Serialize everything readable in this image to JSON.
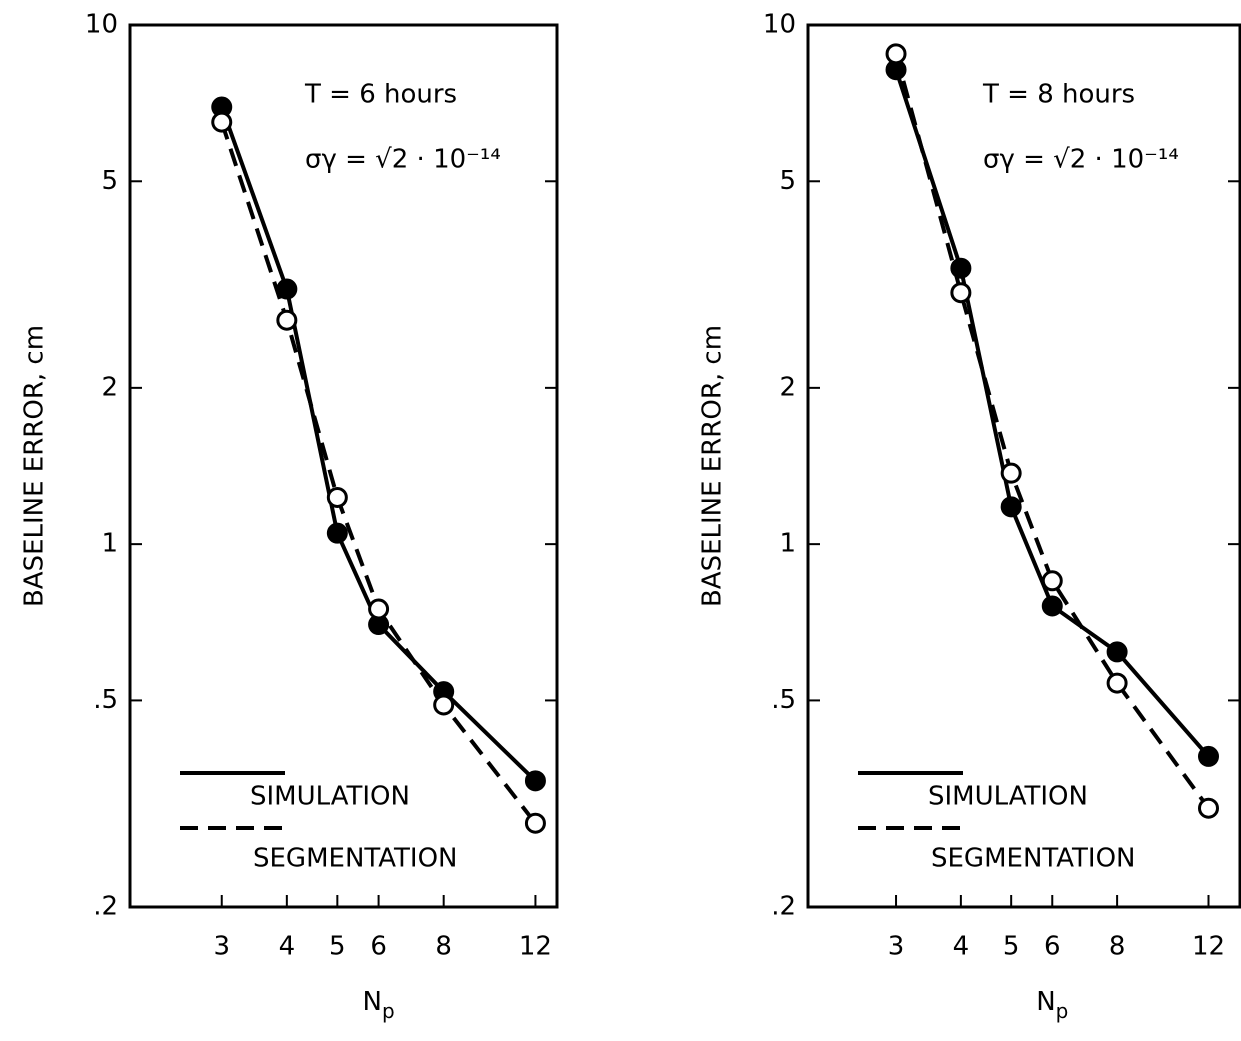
{
  "chart_data": [
    {
      "type": "line",
      "ylabel": "BASELINE ERROR, cm",
      "xlabel": "N",
      "xlabel_sub": "p",
      "annotations": [
        "T  =  6 hours",
        "σγ = √2 · 10⁻¹⁴"
      ],
      "x": [
        3,
        4,
        5,
        6,
        8,
        12
      ],
      "series": [
        {
          "name": "SIMULATION",
          "color": "#000000",
          "line": "solid",
          "marker": "filled",
          "values": [
            6.95,
            3.1,
            1.05,
            0.7,
            0.52,
            0.35
          ]
        },
        {
          "name": "SEGMENTATION",
          "color": "#000000",
          "line": "dashed",
          "marker": "open",
          "values": [
            6.5,
            2.7,
            1.23,
            0.75,
            0.49,
            0.29
          ]
        }
      ],
      "xlim": [
        2.0,
        13.2
      ],
      "ylim": [
        0.2,
        10
      ],
      "xscale": "log",
      "yscale": "log",
      "xticks": [
        3,
        4,
        5,
        6,
        8,
        12
      ],
      "yticks": [
        10,
        5,
        2,
        1,
        {
          "value": 0.5,
          "label": ".5"
        },
        {
          "value": 0.2,
          "label": ".2"
        }
      ],
      "legend": "lower left"
    },
    {
      "type": "line",
      "ylabel": "BASELINE ERROR, cm",
      "xlabel": "N",
      "xlabel_sub": "p",
      "annotations": [
        "T  =  8 hours",
        "σγ = √2 · 10⁻¹⁴"
      ],
      "x": [
        3,
        4,
        5,
        6,
        8,
        12
      ],
      "series": [
        {
          "name": "SIMULATION",
          "color": "#000000",
          "line": "solid",
          "marker": "filled",
          "values": [
            8.2,
            3.4,
            1.18,
            0.76,
            0.62,
            0.39
          ]
        },
        {
          "name": "SEGMENTATION",
          "color": "#000000",
          "line": "dashed",
          "marker": "open",
          "values": [
            8.8,
            3.05,
            1.37,
            0.85,
            0.54,
            0.31
          ]
        }
      ],
      "xlim": [
        2.03,
        13.8
      ],
      "ylim": [
        0.2,
        10
      ],
      "xscale": "log",
      "yscale": "log",
      "xticks": [
        3,
        4,
        5,
        6,
        8,
        12
      ],
      "yticks": [
        10,
        5,
        2,
        1,
        {
          "value": 0.5,
          "label": ".5"
        },
        {
          "value": 0.2,
          "label": ".2"
        }
      ],
      "legend": "lower left"
    }
  ]
}
